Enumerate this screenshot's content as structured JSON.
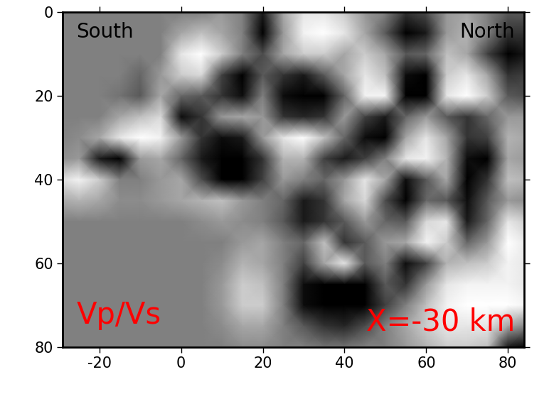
{
  "chart_data": {
    "type": "heatmap",
    "x": [
      -30,
      -25,
      -20,
      -15,
      -10,
      -5,
      0,
      5,
      10,
      15,
      20,
      25,
      30,
      35,
      40,
      45,
      50,
      55,
      60,
      65,
      70,
      75,
      80,
      85
    ],
    "y": [
      0,
      5,
      10,
      15,
      20,
      25,
      30,
      35,
      40,
      45,
      50,
      55,
      60,
      65,
      70,
      75,
      80
    ],
    "cells": [
      [
        0,
        0,
        0,
        0,
        0,
        0,
        0,
        0,
        0.2,
        0,
        -0.8,
        0.3,
        0.8,
        0.8,
        0.6,
        0.2,
        0,
        -0.6,
        -0.4,
        0.2,
        0.3,
        0,
        -0.3,
        -0.3
      ],
      [
        0,
        0,
        0,
        0,
        0,
        0,
        0.3,
        0.5,
        0.3,
        0,
        -1,
        0.2,
        0.9,
        1,
        0.8,
        0.3,
        -0.3,
        -1,
        -0.8,
        0.2,
        0.4,
        0,
        -0.6,
        -0.6
      ],
      [
        0,
        0,
        0,
        0,
        0,
        0,
        0.8,
        1,
        0.6,
        0,
        -0.4,
        0.3,
        0.6,
        0.6,
        0.3,
        0.6,
        0.3,
        -0.3,
        -0.2,
        0.5,
        0.3,
        -0.5,
        -1,
        -0.8
      ],
      [
        0,
        0,
        0,
        0,
        -0.2,
        0.2,
        0.6,
        0.7,
        -0.5,
        -1,
        -0.3,
        -0.6,
        -0.8,
        -0.3,
        0.3,
        0.8,
        0.5,
        -0.9,
        -1,
        0.6,
        0.8,
        0.3,
        -0.6,
        -0.5
      ],
      [
        0,
        0,
        0,
        -0.1,
        -0.3,
        0.3,
        -0.2,
        -0.3,
        -0.6,
        -0.9,
        0,
        -0.9,
        -1,
        -1,
        -0.2,
        0.9,
        0.9,
        -1,
        -1,
        0.8,
        1,
        0.6,
        -0.3,
        -0.4
      ],
      [
        0,
        0,
        0,
        0.3,
        0.5,
        0.7,
        -0.9,
        -0.6,
        0.2,
        0.3,
        0.2,
        -0.6,
        -0.7,
        -0.6,
        0.2,
        -0.5,
        -0.8,
        -0.2,
        0.2,
        -0.3,
        -0.6,
        -0.2,
        0.2,
        0.2
      ],
      [
        0,
        0.1,
        0.3,
        0.8,
        1,
        0.9,
        0.2,
        -0.6,
        -0.9,
        -0.8,
        0.2,
        0.8,
        1,
        0.5,
        -0.2,
        -0.9,
        -1,
        0.3,
        0.8,
        0.3,
        -0.6,
        -0.5,
        0.4,
        0.3
      ],
      [
        0.1,
        0.2,
        -0.8,
        -1,
        0.2,
        0.3,
        -0.2,
        -0.8,
        -1,
        -1,
        -0.6,
        0.4,
        0.4,
        -0.5,
        -0.8,
        -0.5,
        0,
        0.8,
        0.9,
        0.4,
        -0.9,
        -1,
        0.3,
        0.2
      ],
      [
        0.7,
        0.9,
        0.6,
        0,
        0,
        0.2,
        0.3,
        -0.4,
        -1,
        -1,
        -0.5,
        0.2,
        0,
        -0.2,
        0.2,
        0.8,
        0.3,
        -0.9,
        -0.3,
        0.3,
        -1,
        -0.6,
        0.5,
        0.4
      ],
      [
        0.3,
        0.4,
        0.3,
        0.1,
        0.1,
        0.2,
        0.3,
        0.4,
        0.5,
        0.2,
        0,
        -0.2,
        -0.8,
        -0.6,
        0.3,
        0.7,
        -0.4,
        -1,
        -0.2,
        -0.3,
        -0.9,
        -0.3,
        0.2,
        0.1
      ],
      [
        0,
        0,
        0,
        0,
        0,
        0,
        0,
        0.1,
        0.2,
        0.1,
        0,
        -0.3,
        -0.8,
        -0.6,
        -0.3,
        0.2,
        -0.2,
        -0.3,
        0.7,
        0.8,
        -0.8,
        -0.2,
        0.8,
        0.6
      ],
      [
        0,
        0,
        0,
        0,
        0,
        0,
        0,
        0,
        0,
        0.2,
        0.3,
        0,
        -0.2,
        0.5,
        -0.6,
        -0.3,
        0.2,
        0.3,
        0.9,
        0.6,
        -0.2,
        0.2,
        1,
        0.8
      ],
      [
        0,
        0,
        0,
        0,
        0,
        0,
        0,
        0,
        0.1,
        0.4,
        0.3,
        0,
        -0.5,
        0.3,
        0.8,
        -0.3,
        0,
        -0.9,
        -0.5,
        0.4,
        0.5,
        0.6,
        0.9,
        0.8
      ],
      [
        0,
        0,
        0,
        0,
        0,
        0,
        0,
        0,
        0.2,
        0.6,
        0.5,
        0,
        -0.9,
        -1,
        -1,
        -1,
        -0.3,
        -0.6,
        0.2,
        0.8,
        0.9,
        0.9,
        0.9,
        0.8
      ],
      [
        0,
        0,
        0,
        0,
        0,
        0,
        0,
        0,
        0.2,
        0.6,
        0.6,
        0,
        -0.9,
        -1,
        -1,
        -1,
        -0.5,
        0,
        0.5,
        0.9,
        1,
        1,
        1,
        0.9
      ],
      [
        0,
        0,
        0,
        0,
        0,
        0,
        0,
        0,
        0.1,
        0.3,
        0.3,
        0,
        -0.3,
        -0.6,
        -0.7,
        -0.4,
        0,
        0.3,
        0.6,
        0.8,
        0.8,
        0.8,
        0.3,
        0
      ],
      [
        0,
        0,
        0,
        0,
        0,
        0,
        0,
        0,
        0,
        0.1,
        0.1,
        0,
        0,
        -0.1,
        -0.1,
        0,
        0,
        0.2,
        0.4,
        0.6,
        0.6,
        0.5,
        -0.8,
        -1
      ]
    ],
    "value_range": [
      -1,
      1
    ],
    "xlim": [
      -29,
      84
    ],
    "ylim": [
      80,
      0
    ],
    "xticks": [
      -20,
      0,
      20,
      40,
      60,
      80
    ],
    "yticks": [
      0,
      20,
      40,
      60,
      80
    ],
    "annotations": [
      {
        "text": "South",
        "color": "#000000"
      },
      {
        "text": "North",
        "color": "#000000"
      },
      {
        "text": "Vp/Vs",
        "color": "#ff0000"
      },
      {
        "text": "X=-30 km",
        "color": "#ff0000"
      }
    ]
  }
}
